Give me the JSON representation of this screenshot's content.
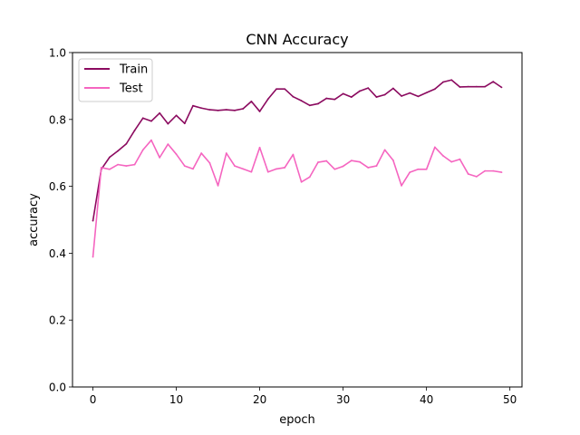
{
  "chart_data": {
    "type": "line",
    "title": "CNN Accuracy",
    "xlabel": "epoch",
    "ylabel": "accuracy",
    "xlim": [
      -2.45,
      51.45
    ],
    "ylim": [
      0.0,
      1.0
    ],
    "xticks": [
      0,
      10,
      20,
      30,
      40,
      50
    ],
    "yticks": [
      0.0,
      0.2,
      0.4,
      0.6,
      0.8,
      1.0
    ],
    "xtick_labels": [
      "0",
      "10",
      "20",
      "30",
      "40",
      "50"
    ],
    "ytick_labels": [
      "0.0",
      "0.2",
      "0.4",
      "0.6",
      "0.8",
      "1.0"
    ],
    "grid": false,
    "legend": {
      "placement": "top-left"
    },
    "x": [
      0,
      1,
      2,
      3,
      4,
      5,
      6,
      7,
      8,
      9,
      10,
      11,
      12,
      13,
      14,
      15,
      16,
      17,
      18,
      19,
      20,
      21,
      22,
      23,
      24,
      25,
      26,
      27,
      28,
      29,
      30,
      31,
      32,
      33,
      34,
      35,
      36,
      37,
      38,
      39,
      40,
      41,
      42,
      43,
      44,
      45,
      46,
      47,
      48,
      49
    ],
    "series": [
      {
        "name": "Train",
        "color": "#8b0a5f",
        "values": [
          0.497,
          0.651,
          0.687,
          0.706,
          0.727,
          0.767,
          0.804,
          0.795,
          0.819,
          0.787,
          0.812,
          0.788,
          0.841,
          0.834,
          0.829,
          0.827,
          0.829,
          0.827,
          0.832,
          0.854,
          0.824,
          0.861,
          0.891,
          0.891,
          0.868,
          0.856,
          0.842,
          0.847,
          0.863,
          0.86,
          0.877,
          0.867,
          0.885,
          0.894,
          0.867,
          0.874,
          0.893,
          0.87,
          0.879,
          0.869,
          0.88,
          0.891,
          0.912,
          0.918,
          0.897,
          0.898,
          0.898,
          0.898,
          0.913,
          0.896
        ]
      },
      {
        "name": "Test",
        "color": "#f565c0",
        "values": [
          0.389,
          0.656,
          0.651,
          0.665,
          0.661,
          0.665,
          0.709,
          0.738,
          0.686,
          0.726,
          0.696,
          0.661,
          0.652,
          0.699,
          0.67,
          0.602,
          0.699,
          0.661,
          0.652,
          0.643,
          0.716,
          0.643,
          0.652,
          0.656,
          0.695,
          0.613,
          0.628,
          0.672,
          0.676,
          0.651,
          0.66,
          0.677,
          0.673,
          0.656,
          0.661,
          0.709,
          0.678,
          0.602,
          0.642,
          0.651,
          0.651,
          0.717,
          0.691,
          0.673,
          0.681,
          0.637,
          0.629,
          0.646,
          0.646,
          0.642
        ]
      }
    ]
  }
}
